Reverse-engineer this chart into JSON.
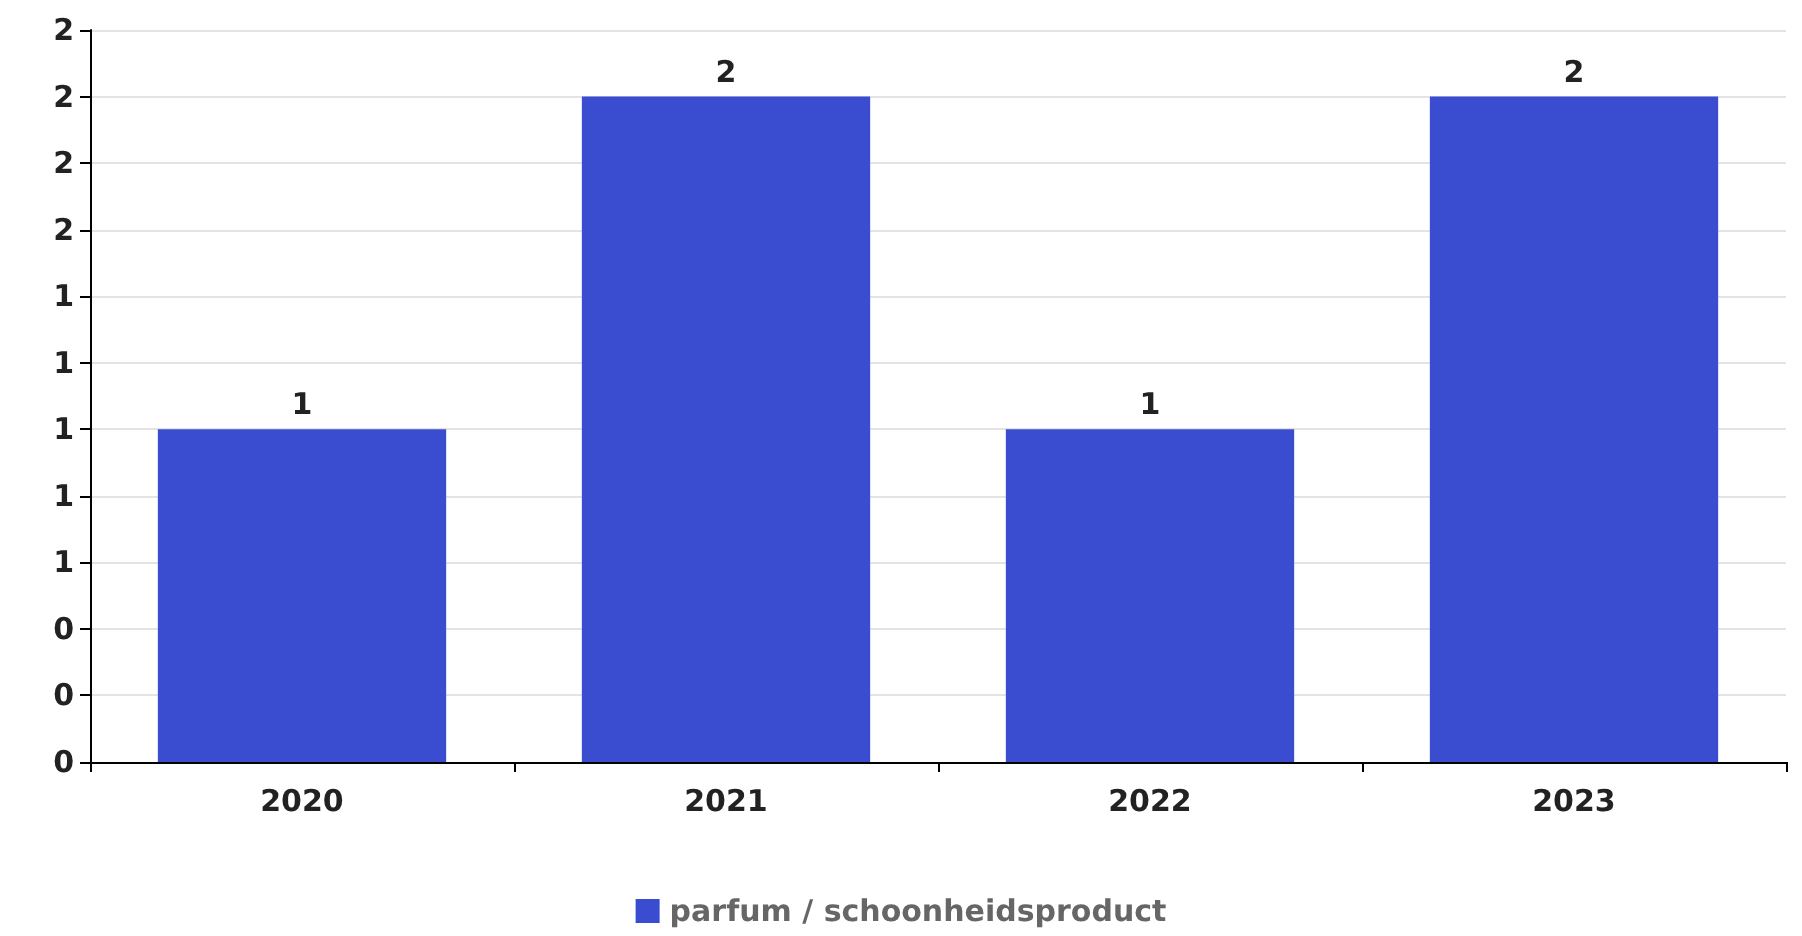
{
  "chart_data": {
    "type": "bar",
    "categories": [
      "2020",
      "2021",
      "2022",
      "2023"
    ],
    "series": [
      {
        "name": "parfum / schoonheidsproduct",
        "color": "#3a4cd0",
        "values": [
          1,
          2,
          1,
          2
        ]
      }
    ],
    "ylim": [
      0,
      2.2
    ],
    "yticks": [
      0,
      {
        "value": 0.2,
        "label": "0"
      },
      {
        "value": 0.4,
        "label": "0"
      },
      {
        "value": 0.6,
        "label": "1"
      },
      {
        "value": 0.8,
        "label": "1"
      },
      1,
      {
        "value": 1.2,
        "label": "1"
      },
      {
        "value": 1.4,
        "label": "1"
      },
      {
        "value": 1.6,
        "label": "2"
      },
      {
        "value": 1.8,
        "label": "2"
      },
      2,
      {
        "value": 2.2,
        "label": "2"
      }
    ],
    "grid": "y",
    "legend": "bottom",
    "data_labels": true
  }
}
